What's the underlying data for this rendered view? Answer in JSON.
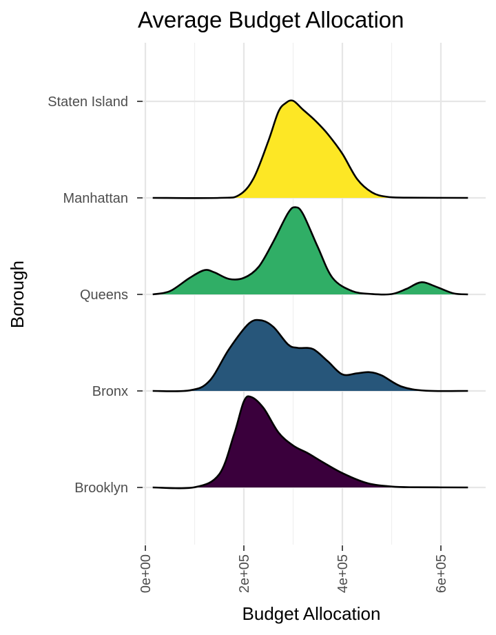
{
  "chart_data": {
    "type": "ridgeline",
    "title": "Average Budget Allocation",
    "xlabel": "Budget Allocation",
    "ylabel": "Borough",
    "xlim": [
      0,
      650000
    ],
    "x_ticks": [
      0,
      200000,
      400000,
      600000
    ],
    "x_tick_labels": [
      "0e+00",
      "2e+05",
      "4e+05",
      "6e+05"
    ],
    "categories": [
      "Brooklyn",
      "Bronx",
      "Queens",
      "Manhattan",
      "Staten Island"
    ],
    "grid": true,
    "legend": "none",
    "series": [
      {
        "name": "Brooklyn",
        "color": "#3a003c",
        "density": [
          [
            15000,
            0
          ],
          [
            100000,
            0.002
          ],
          [
            150000,
            0.12
          ],
          [
            180000,
            0.48
          ],
          [
            200000,
            0.78
          ],
          [
            215000,
            0.82
          ],
          [
            240000,
            0.72
          ],
          [
            270000,
            0.5
          ],
          [
            300000,
            0.38
          ],
          [
            330000,
            0.31
          ],
          [
            360000,
            0.23
          ],
          [
            400000,
            0.13
          ],
          [
            450000,
            0.04
          ],
          [
            500000,
            0.008
          ],
          [
            550000,
            0.002
          ],
          [
            655000,
            0
          ]
        ]
      },
      {
        "name": "Bronx",
        "color": "#27567a",
        "density": [
          [
            15000,
            0
          ],
          [
            90000,
            0.005
          ],
          [
            130000,
            0.09
          ],
          [
            170000,
            0.38
          ],
          [
            210000,
            0.61
          ],
          [
            235000,
            0.64
          ],
          [
            260000,
            0.58
          ],
          [
            290000,
            0.42
          ],
          [
            310000,
            0.39
          ],
          [
            340000,
            0.38
          ],
          [
            370000,
            0.27
          ],
          [
            400000,
            0.15
          ],
          [
            430000,
            0.16
          ],
          [
            455000,
            0.17
          ],
          [
            480000,
            0.14
          ],
          [
            520000,
            0.04
          ],
          [
            570000,
            0.002
          ],
          [
            655000,
            0
          ]
        ]
      },
      {
        "name": "Queens",
        "color": "#30ae66",
        "density": [
          [
            15000,
            0
          ],
          [
            50000,
            0.03
          ],
          [
            90000,
            0.15
          ],
          [
            120000,
            0.22
          ],
          [
            140000,
            0.2
          ],
          [
            170000,
            0.14
          ],
          [
            200000,
            0.15
          ],
          [
            230000,
            0.25
          ],
          [
            260000,
            0.48
          ],
          [
            290000,
            0.74
          ],
          [
            305000,
            0.79
          ],
          [
            320000,
            0.73
          ],
          [
            350000,
            0.43
          ],
          [
            380000,
            0.15
          ],
          [
            420000,
            0.03
          ],
          [
            460000,
            0.004
          ],
          [
            500000,
            0.003
          ],
          [
            530000,
            0.05
          ],
          [
            560000,
            0.11
          ],
          [
            590000,
            0.07
          ],
          [
            625000,
            0.01
          ],
          [
            655000,
            0
          ]
        ]
      },
      {
        "name": "Manhattan",
        "color": "#fde725",
        "density": [
          [
            15000,
            0
          ],
          [
            150000,
            0
          ],
          [
            190000,
            0.025
          ],
          [
            220000,
            0.18
          ],
          [
            250000,
            0.52
          ],
          [
            270000,
            0.78
          ],
          [
            285000,
            0.86
          ],
          [
            300000,
            0.88
          ],
          [
            320000,
            0.8
          ],
          [
            345000,
            0.7
          ],
          [
            370000,
            0.58
          ],
          [
            400000,
            0.4
          ],
          [
            430000,
            0.17
          ],
          [
            460000,
            0.05
          ],
          [
            490000,
            0.01
          ],
          [
            530000,
            0.002
          ],
          [
            655000,
            0
          ]
        ]
      }
    ]
  }
}
